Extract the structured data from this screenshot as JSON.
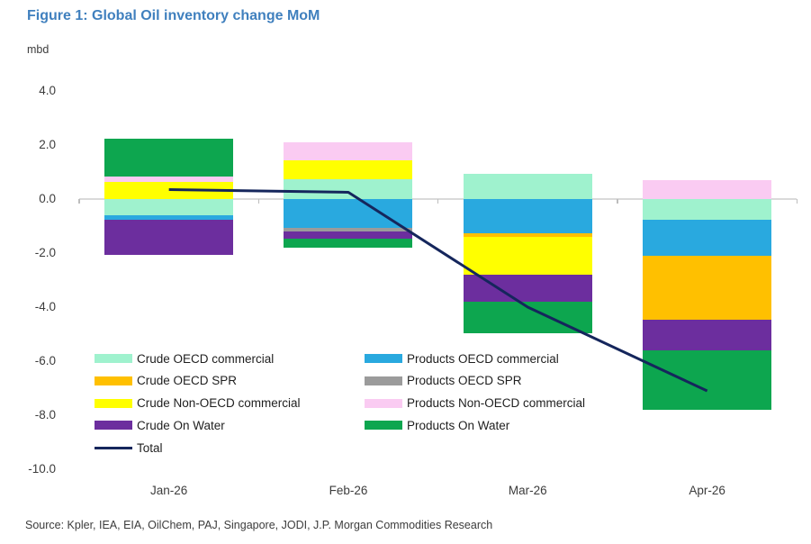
{
  "title": "Figure 1: Global Oil inventory change MoM",
  "y_axis_unit": "mbd",
  "source": "Source: Kpler, IEA, EIA, OilChem, PAJ, Singapore, JODI, J.P. Morgan Commodities Research",
  "colors": {
    "mint": "#9FF2CE",
    "orange": "#FFC000",
    "yellow": "#FFFF00",
    "purple": "#6C2E9E",
    "blue": "#29A9DF",
    "gray": "#9B9B9B",
    "pink": "#FACBF2",
    "green": "#0DA64F",
    "navy": "#15265C",
    "title_blue": "#4080BE",
    "text": "#3C3C3C",
    "gridline": "#DADADA",
    "axis_tick": "#BDBDBD"
  },
  "chart_data": {
    "type": "bar",
    "subtype": "stacked-bars-with-total-line",
    "title": "Figure 1: Global Oil inventory change MoM",
    "ylabel": "mbd",
    "xlabel": "",
    "categories": [
      "Jan-26",
      "Feb-26",
      "Mar-26",
      "Apr-26"
    ],
    "series": [
      {
        "key": "mint",
        "name": "Crude OECD commercial",
        "values": [
          -0.6,
          0.75,
          0.95,
          -0.75
        ]
      },
      {
        "key": "orange",
        "name": "Crude OECD SPR",
        "values": [
          0,
          0,
          -0.15,
          -2.35
        ]
      },
      {
        "key": "yellow",
        "name": "Crude Non-OECD commercial",
        "values": [
          0.65,
          0.7,
          -1.4,
          0
        ]
      },
      {
        "key": "purple",
        "name": "Crude On Water",
        "values": [
          -1.3,
          -0.25,
          -1.0,
          -1.15
        ]
      },
      {
        "key": "blue",
        "name": "Products OECD commercial",
        "values": [
          -0.15,
          -1.05,
          -1.25,
          -1.35
        ]
      },
      {
        "key": "gray",
        "name": "Products OECD SPR",
        "values": [
          0,
          -0.15,
          0,
          0
        ]
      },
      {
        "key": "pink",
        "name": "Products Non-OECD commercial",
        "values": [
          0.2,
          0.65,
          0,
          0.7
        ]
      },
      {
        "key": "green",
        "name": "Products On Water",
        "values": [
          1.4,
          -0.35,
          -1.15,
          -2.2
        ]
      }
    ],
    "line_series": {
      "key": "navy",
      "name": "Total",
      "values": [
        0.35,
        0.25,
        -4.0,
        -7.1
      ]
    },
    "stack_order": [
      "mint",
      "blue",
      "gray",
      "orange",
      "yellow",
      "pink",
      "purple",
      "green"
    ],
    "ylim": [
      -10,
      4
    ],
    "yticks": [
      4.0,
      2.0,
      0.0,
      -2.0,
      -4.0,
      -6.0,
      -8.0,
      -10.0
    ],
    "ytick_labels": [
      "4.0",
      "2.0",
      "0.0",
      "-2.0",
      "-4.0",
      "-6.0",
      "-8.0",
      "-10.0"
    ],
    "grid": "horizontal zero line only",
    "legend_position": "inside lower-left, two columns"
  },
  "legend": {
    "columns": [
      {
        "items": [
          {
            "key": "mint",
            "label": "Crude OECD commercial"
          },
          {
            "key": "orange",
            "label": "Crude OECD SPR"
          },
          {
            "key": "yellow",
            "label": "Crude Non-OECD commercial"
          },
          {
            "key": "purple",
            "label": "Crude On Water"
          }
        ]
      },
      {
        "items": [
          {
            "key": "blue",
            "label": "Products OECD commercial"
          },
          {
            "key": "gray",
            "label": "Products OECD SPR"
          },
          {
            "key": "pink",
            "label": "Products Non-OECD commercial"
          },
          {
            "key": "green",
            "label": "Products On Water"
          }
        ]
      }
    ],
    "total": {
      "key": "navy",
      "label": "Total"
    }
  }
}
